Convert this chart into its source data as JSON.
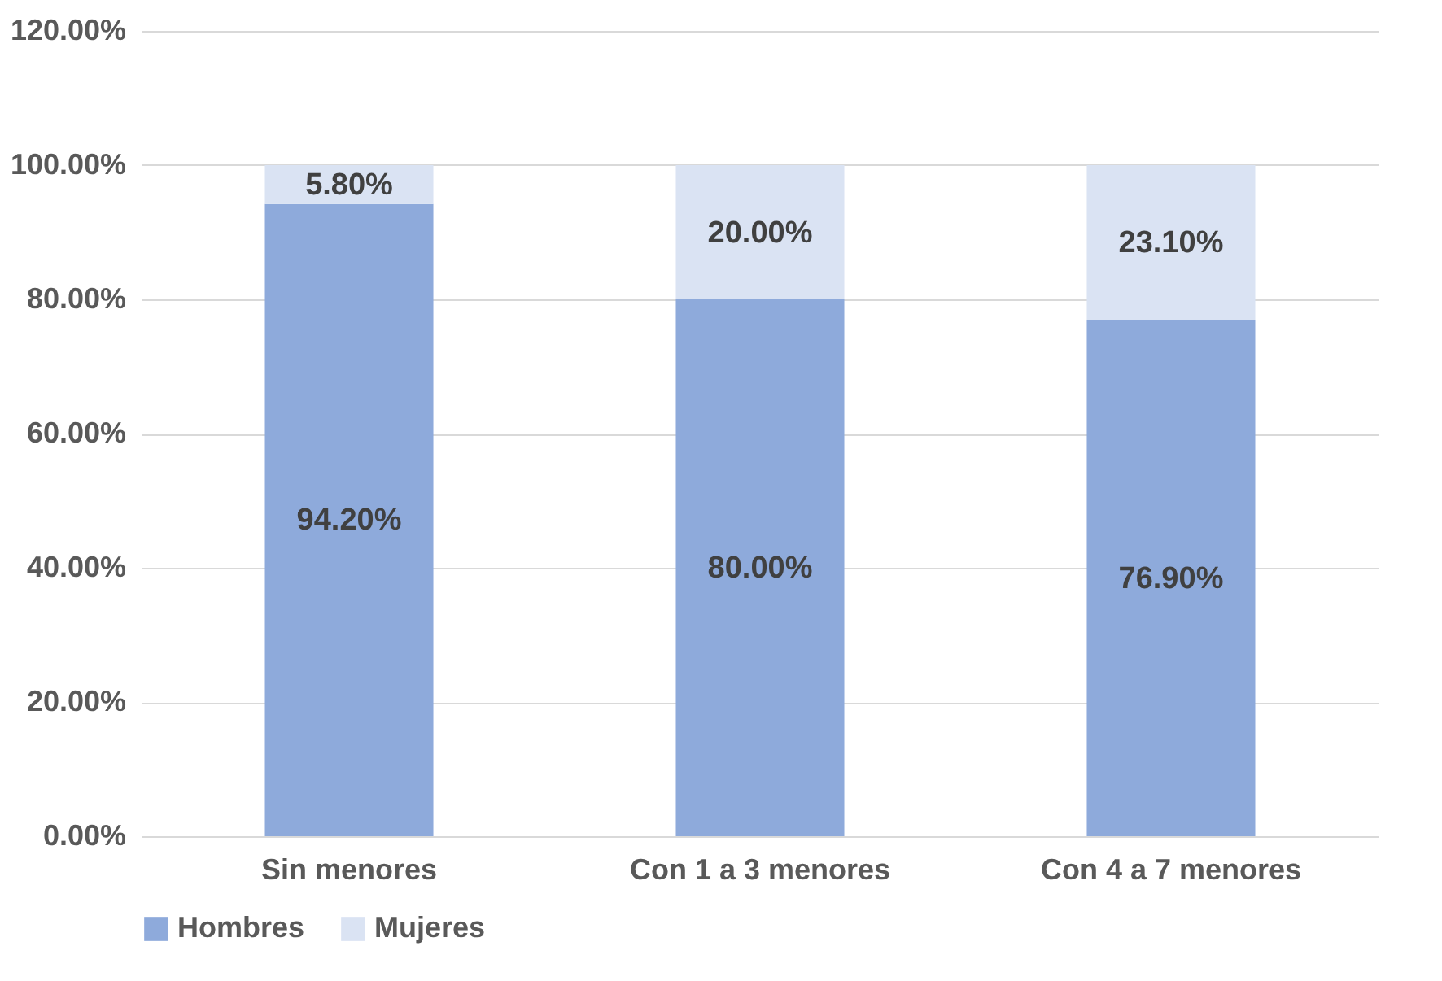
{
  "chart_data": {
    "type": "bar",
    "stacked": true,
    "categories": [
      "Sin menores",
      "Con 1 a 3 menores",
      "Con 4  a 7 menores"
    ],
    "series": [
      {
        "name": "Hombres",
        "color": "#8eaadb",
        "values": [
          94.2,
          80.0,
          76.9
        ],
        "value_labels": [
          "94.20%",
          "80.00%",
          "76.90%"
        ]
      },
      {
        "name": "Mujeres",
        "color": "#dae3f3",
        "values": [
          5.8,
          20.0,
          23.1
        ],
        "value_labels": [
          "5.80%",
          "20.00%",
          "23.10%"
        ]
      }
    ],
    "ylim": [
      0,
      120
    ],
    "yticks": [
      {
        "value": 0,
        "label": "0.00%"
      },
      {
        "value": 20,
        "label": "20.00%"
      },
      {
        "value": 40,
        "label": "40.00%"
      },
      {
        "value": 60,
        "label": "60.00%"
      },
      {
        "value": 80,
        "label": "80.00%"
      },
      {
        "value": 100,
        "label": "100.00%"
      },
      {
        "value": 120,
        "label": "120.00%"
      }
    ],
    "grid": "y",
    "legend": "bottom"
  }
}
